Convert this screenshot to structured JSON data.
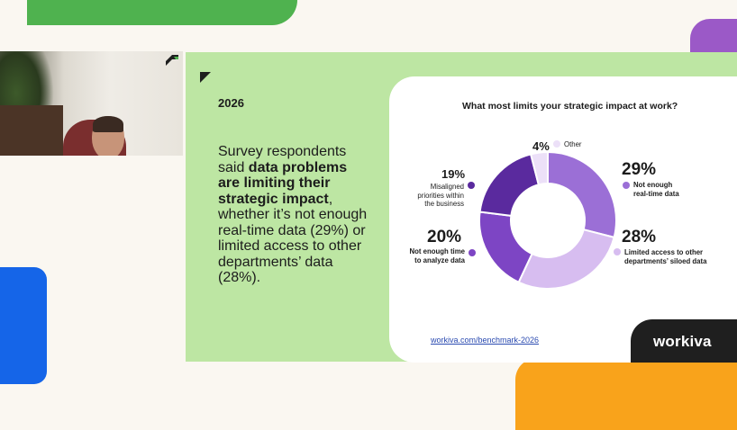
{
  "colors": {
    "background": "#faf7f1",
    "slide_green": "#bde6a3",
    "deco_green": "#4fb24f",
    "deco_purple": "#9b59c7",
    "deco_blue": "#1565e8",
    "deco_orange": "#f9a31b",
    "logo_bg": "#1f1f1f"
  },
  "webcam": {
    "icon": "webcam-person-video"
  },
  "slide": {
    "year": "2026",
    "body_pre": "Survey respondents said ",
    "body_bold": "data problems are limiting their strategic impact",
    "body_post": ", whether it’s not enough real-time data (29%) or limited access to other departments’ data (28%)."
  },
  "chart_data": {
    "type": "pie",
    "title": "What most limits your strategic impact at work?",
    "donut": true,
    "slices": [
      {
        "label": "Not enough real-time data",
        "value": 29,
        "pct_text": "29%",
        "line1": "Not enough",
        "line2": "real-time data",
        "color": "#9b6fd6"
      },
      {
        "label": "Limited access to other departments’ siloed data",
        "value": 28,
        "pct_text": "28%",
        "line1": "Limited access to other",
        "line2": "departments’ siloed data",
        "color": "#d7bdf0"
      },
      {
        "label": "Not enough time to analyze data",
        "value": 20,
        "pct_text": "20%",
        "line1": "Not enough time",
        "line2": "to analyze data",
        "color": "#7d45c4"
      },
      {
        "label": "Misaligned priorities within the business",
        "value": 19,
        "pct_text": "19%",
        "line1": "Misaligned",
        "line2": "priorities within",
        "line3": "the business",
        "color": "#5a2a9e"
      },
      {
        "label": "Other",
        "value": 4,
        "pct_text": "4%",
        "line1": "Other",
        "color": "#ece0f8"
      }
    ]
  },
  "footer": {
    "link": "workiva.com/benchmark-2026",
    "logo": "workiva"
  }
}
